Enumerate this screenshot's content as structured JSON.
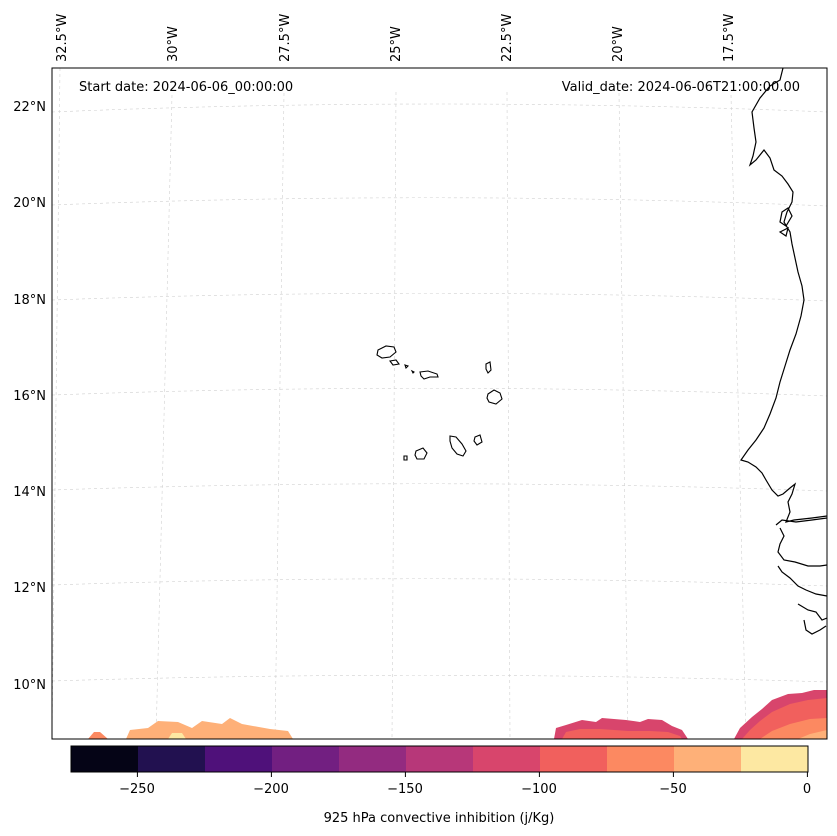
{
  "map": {
    "start_date_label": "Start date: 2024-06-06_00:00:00",
    "valid_date_label": "Valid_date: 2024-06-06T21:00:00.00",
    "lon_labels": [
      "32.5°W",
      "30°W",
      "27.5°W",
      "25°W",
      "22.5°W",
      "20°W",
      "17.5°W"
    ],
    "lat_labels": [
      "22°N",
      "20°N",
      "18°N",
      "16°N",
      "14°N",
      "12°N",
      "10°N"
    ]
  },
  "colorbar": {
    "label": "925 hPa convective inhibition (j/Kg)",
    "ticks": [
      "−250",
      "−200",
      "−150",
      "−100",
      "−50",
      "0"
    ],
    "colors": [
      "#050416",
      "#221150",
      "#4f117a",
      "#721f81",
      "#932b80",
      "#b73779",
      "#d8456c",
      "#f1605d",
      "#fc8961",
      "#feb078",
      "#fde8a2"
    ]
  },
  "legend_colors": {
    "level_m50_m25": "#feb078",
    "level_m25_0": "#fde8a2",
    "level_m75_m50": "#fc8961",
    "level_m100_m75": "#f1605d",
    "level_m125_m100": "#d8456c"
  }
}
